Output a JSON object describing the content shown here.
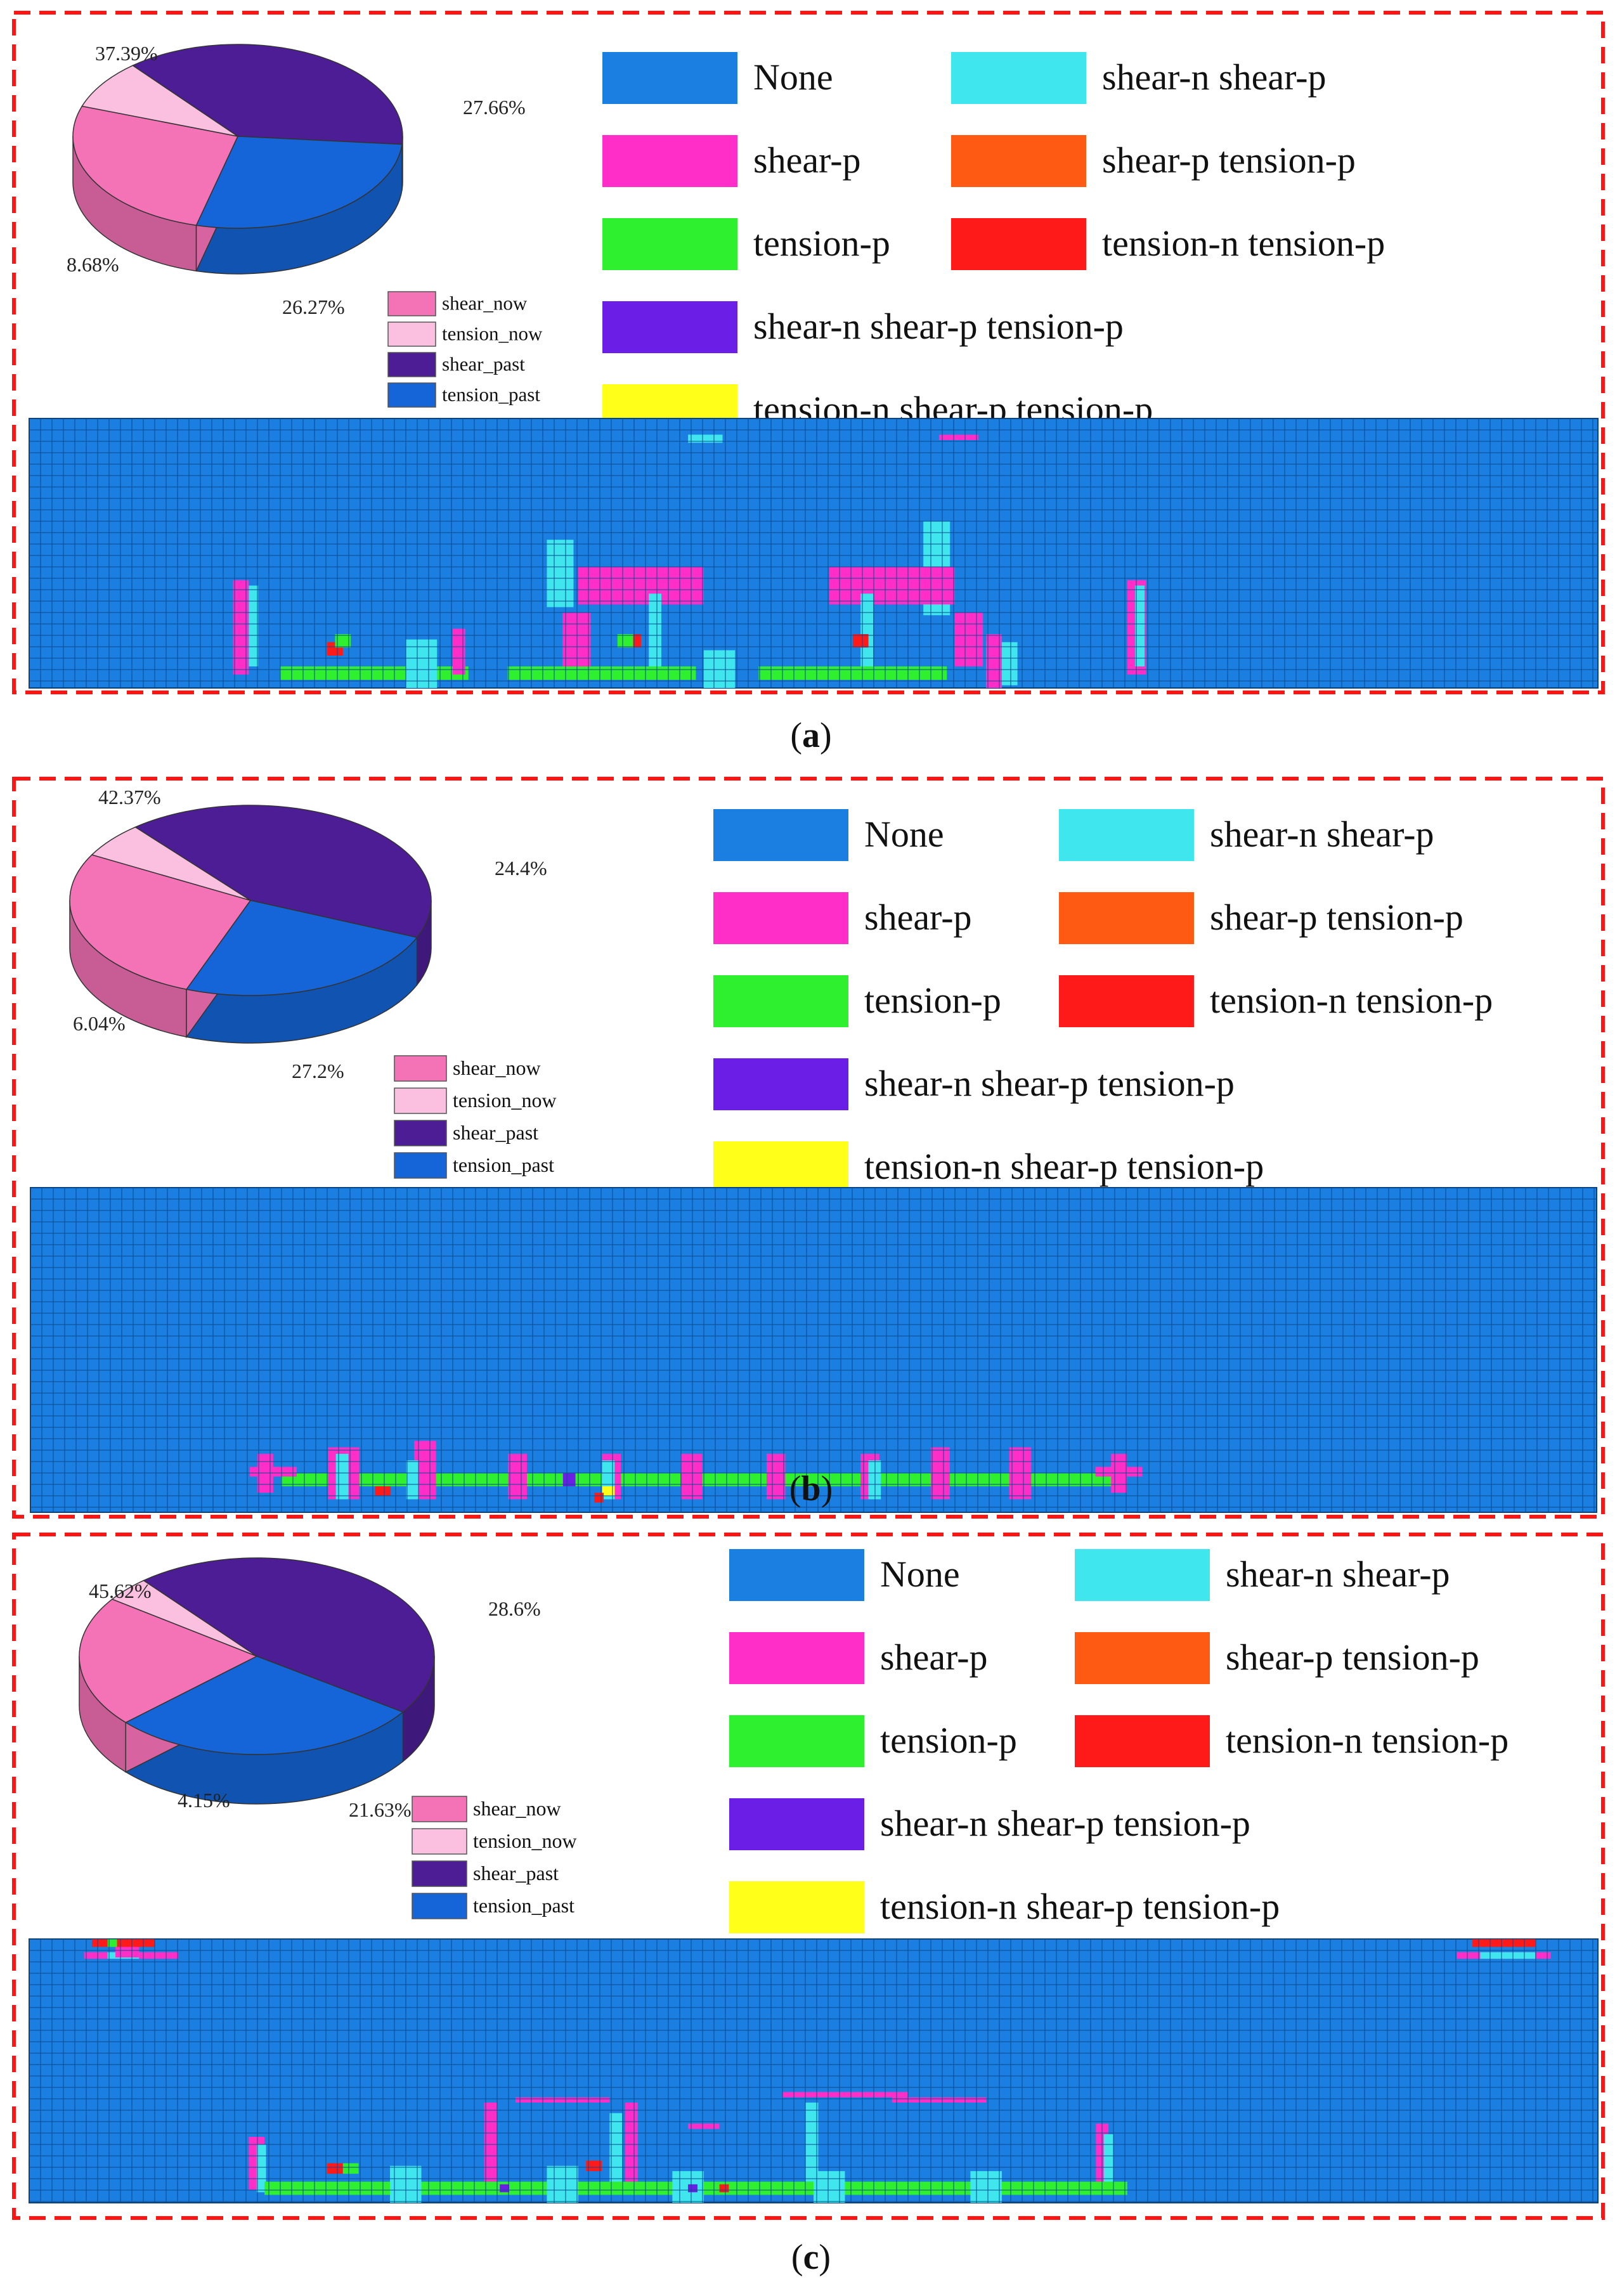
{
  "figure": {
    "panels": [
      {
        "label_prefix": "(",
        "label": "a",
        "label_suffix": ")",
        "pie": {
          "slices": [
            {
              "name": "shear_now",
              "value": 26.27,
              "label": "26.27%",
              "color": "#f472b6"
            },
            {
              "name": "tension_now",
              "value": 8.68,
              "label": "8.68%",
              "color": "#fbbfe0"
            },
            {
              "name": "shear_past",
              "value": 37.39,
              "label": "37.39%",
              "color": "#4c1d95"
            },
            {
              "name": "tension_past",
              "value": 27.66,
              "label": "27.66%",
              "color": "#1565d8"
            }
          ]
        },
        "legend_state": [
          {
            "label": "None",
            "color": "#1a7fe0"
          },
          {
            "label": "shear-n shear-p",
            "color": "#40e6ee"
          },
          {
            "label": "shear-p",
            "color": "#ff2ec8"
          },
          {
            "label": "shear-p tension-p",
            "color": "#ff5a14"
          },
          {
            "label": "tension-p",
            "color": "#2ff02f"
          },
          {
            "label": "tension-n tension-p",
            "color": "#ff1a1a"
          },
          {
            "label": "shear-n shear-p tension-p",
            "color": "#6a1ee6"
          },
          {
            "label": "tension-n shear-p tension-p",
            "color": "#ffff1a"
          }
        ]
      },
      {
        "label_prefix": "(",
        "label": "b",
        "label_suffix": ")",
        "pie": {
          "slices": [
            {
              "name": "shear_now",
              "value": 27.2,
              "label": "27.2%",
              "color": "#f472b6"
            },
            {
              "name": "tension_now",
              "value": 6.04,
              "label": "6.04%",
              "color": "#fbbfe0"
            },
            {
              "name": "shear_past",
              "value": 42.37,
              "label": "42.37%",
              "color": "#4c1d95"
            },
            {
              "name": "tension_past",
              "value": 24.4,
              "label": "24.4%",
              "color": "#1565d8"
            }
          ]
        },
        "legend_state": [
          {
            "label": "None",
            "color": "#1a7fe0"
          },
          {
            "label": "shear-n shear-p",
            "color": "#40e6ee"
          },
          {
            "label": "shear-p",
            "color": "#ff2ec8"
          },
          {
            "label": "shear-p tension-p",
            "color": "#ff5a14"
          },
          {
            "label": "tension-p",
            "color": "#2ff02f"
          },
          {
            "label": "tension-n tension-p",
            "color": "#ff1a1a"
          },
          {
            "label": "shear-n shear-p tension-p",
            "color": "#6a1ee6"
          },
          {
            "label": "tension-n shear-p tension-p",
            "color": "#ffff1a"
          }
        ]
      },
      {
        "label_prefix": "(",
        "label": "c",
        "label_suffix": ")",
        "pie": {
          "slices": [
            {
              "name": "shear_now",
              "value": 21.63,
              "label": "21.63%",
              "color": "#f472b6"
            },
            {
              "name": "tension_now",
              "value": 4.15,
              "label": "4.15%",
              "color": "#fbbfe0"
            },
            {
              "name": "shear_past",
              "value": 45.62,
              "label": "45.62%",
              "color": "#4c1d95"
            },
            {
              "name": "tension_past",
              "value": 28.6,
              "label": "28.6%",
              "color": "#1565d8"
            }
          ]
        },
        "legend_state": [
          {
            "label": "None",
            "color": "#1a7fe0"
          },
          {
            "label": "shear-n shear-p",
            "color": "#40e6ee"
          },
          {
            "label": "shear-p",
            "color": "#ff2ec8"
          },
          {
            "label": "shear-p tension-p",
            "color": "#ff5a14"
          },
          {
            "label": "tension-p",
            "color": "#2ff02f"
          },
          {
            "label": "tension-n tension-p",
            "color": "#ff1a1a"
          },
          {
            "label": "shear-n shear-p tension-p",
            "color": "#6a1ee6"
          },
          {
            "label": "tension-n shear-p tension-p",
            "color": "#ffff1a"
          }
        ]
      }
    ]
  },
  "chart_data": [
    {
      "type": "pie",
      "title": "(a)",
      "categories": [
        "shear_now",
        "tension_now",
        "shear_past",
        "tension_past"
      ],
      "values": [
        26.27,
        8.68,
        37.39,
        27.66
      ]
    },
    {
      "type": "pie",
      "title": "(b)",
      "categories": [
        "shear_now",
        "tension_now",
        "shear_past",
        "tension_past"
      ],
      "values": [
        27.2,
        6.04,
        42.37,
        24.4
      ]
    },
    {
      "type": "pie",
      "title": "(c)",
      "categories": [
        "shear_now",
        "tension_now",
        "shear_past",
        "tension_past"
      ],
      "values": [
        21.63,
        4.15,
        45.62,
        28.6
      ]
    }
  ]
}
